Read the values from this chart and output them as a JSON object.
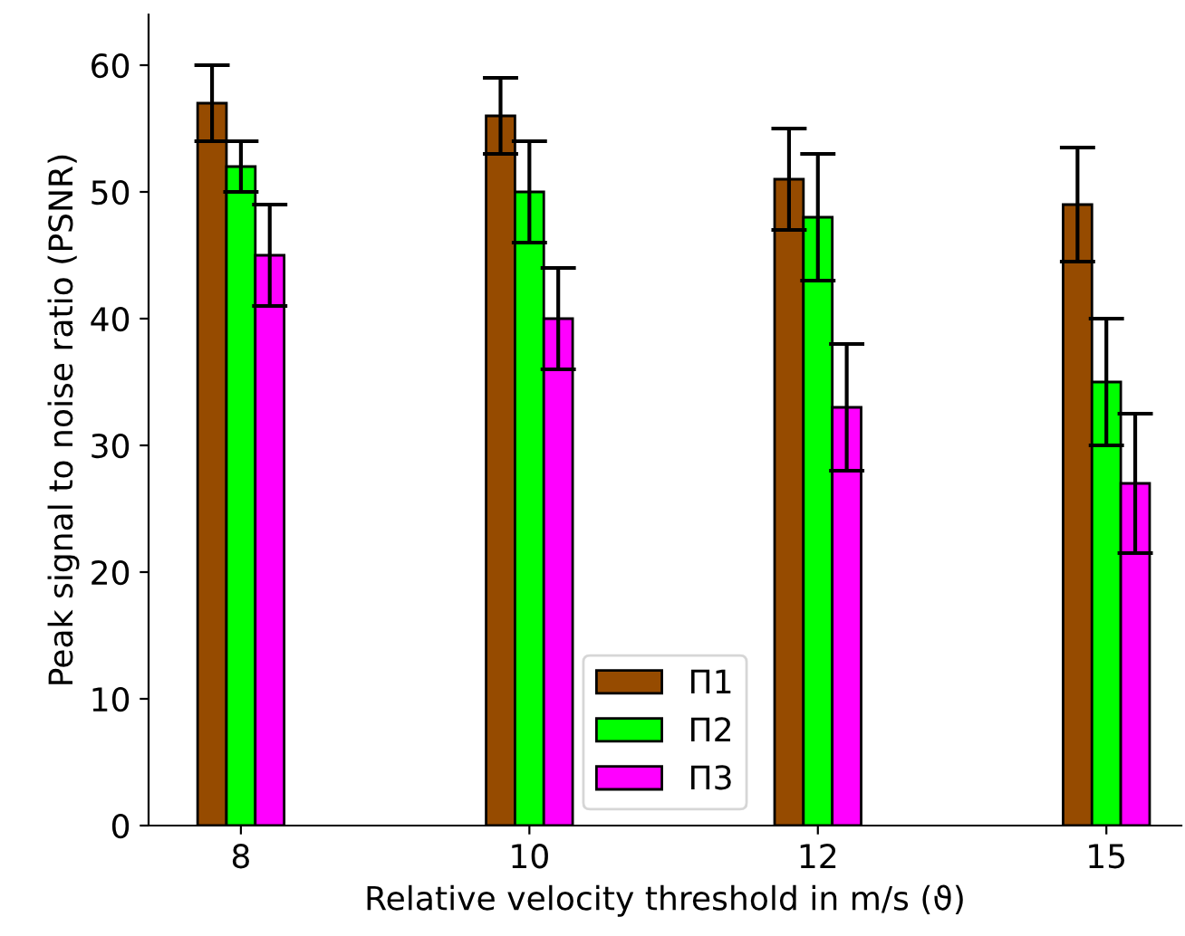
{
  "chart_data": {
    "type": "bar",
    "xlabel": "Relative velocity threshold in m/s (ϑ)",
    "ylabel": "Peak signal to noise ratio (PSNR)",
    "categories": [
      "8",
      "10",
      "12",
      "15"
    ],
    "series": [
      {
        "name": "Π1",
        "color": "#964b00",
        "values": [
          57,
          56,
          51,
          49
        ],
        "errors": [
          3,
          3,
          4,
          4.5
        ]
      },
      {
        "name": "Π2",
        "color": "#00ff00",
        "values": [
          52,
          50,
          48,
          35
        ],
        "errors": [
          2,
          4,
          5,
          5
        ]
      },
      {
        "name": "Π3",
        "color": "#ff00ff",
        "values": [
          45,
          40,
          33,
          27
        ],
        "errors": [
          4,
          4,
          5,
          5.5
        ]
      }
    ],
    "ylim": [
      0,
      64
    ],
    "yticks": [
      0,
      10,
      20,
      30,
      40,
      50,
      60
    ],
    "grid": false,
    "legend": "bottom"
  }
}
